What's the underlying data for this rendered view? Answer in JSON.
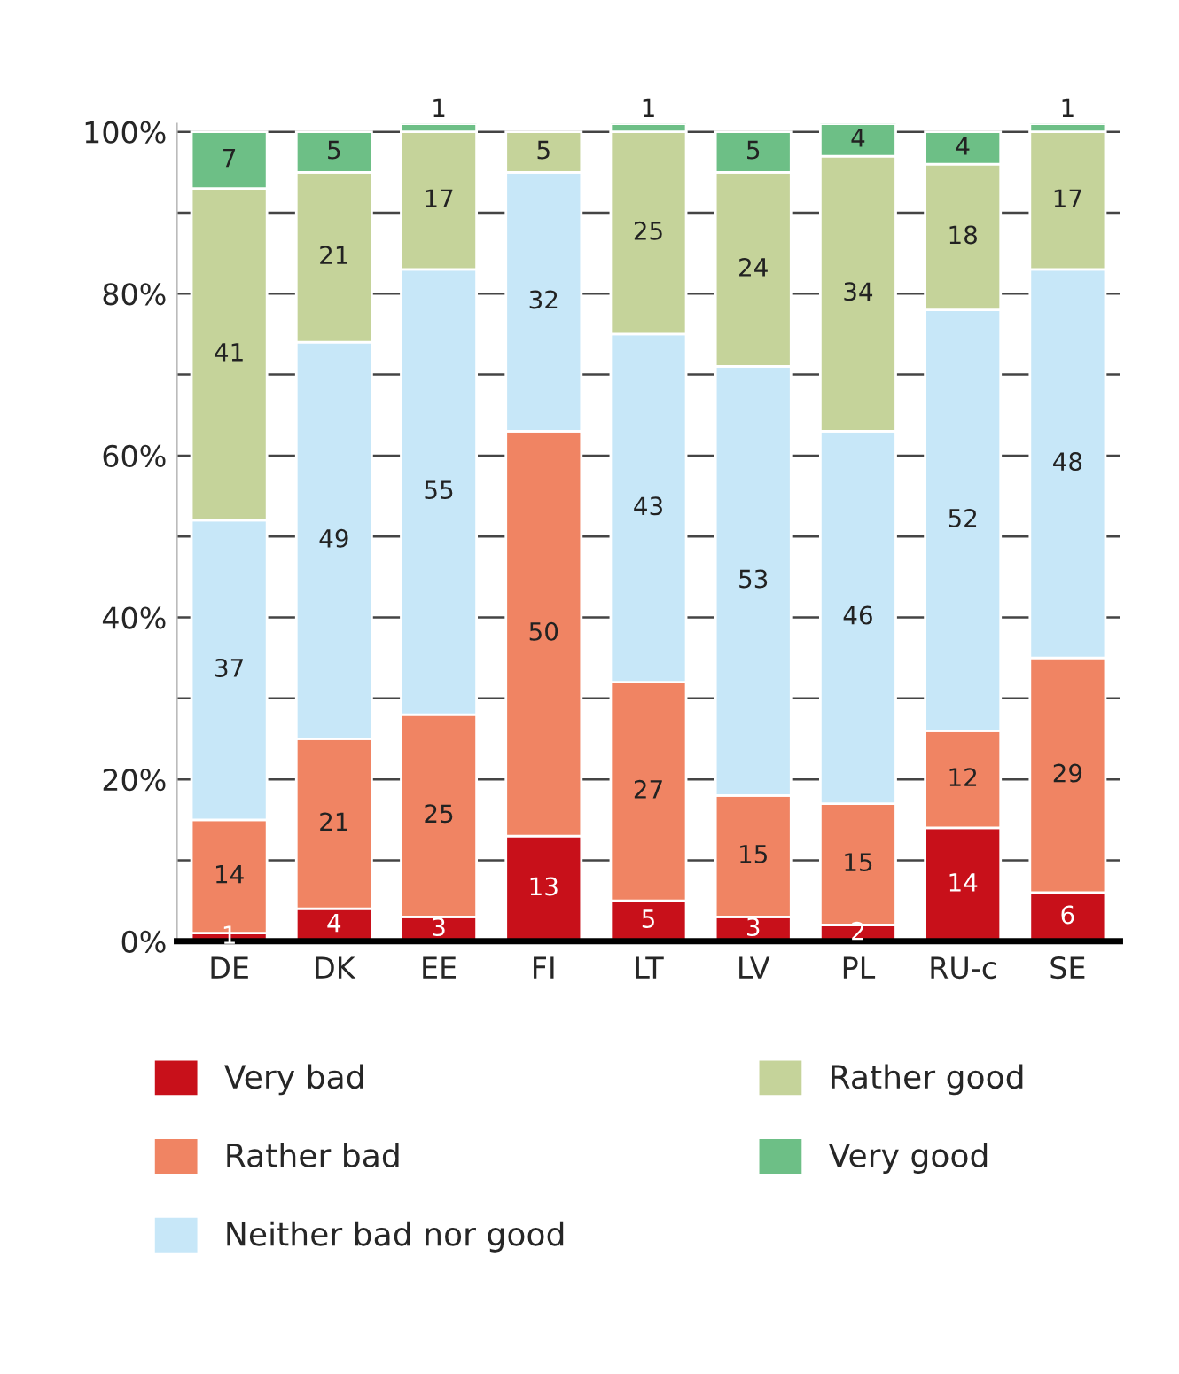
{
  "chart_data": {
    "type": "bar",
    "stacked": true,
    "categories": [
      "DE",
      "DK",
      "EE",
      "FI",
      "LT",
      "LV",
      "PL",
      "RU-c",
      "SE"
    ],
    "series": [
      {
        "name": "Very bad",
        "color": "#c8101a",
        "values": [
          1,
          4,
          3,
          13,
          5,
          3,
          2,
          14,
          6
        ]
      },
      {
        "name": "Rather bad",
        "color": "#f08463",
        "values": [
          14,
          21,
          25,
          50,
          27,
          15,
          15,
          12,
          29
        ]
      },
      {
        "name": "Neither bad nor good",
        "color": "#c7e7f8",
        "values": [
          37,
          49,
          55,
          32,
          43,
          53,
          46,
          52,
          48
        ]
      },
      {
        "name": "Rather good",
        "color": "#c5d39a",
        "values": [
          41,
          21,
          17,
          5,
          25,
          24,
          34,
          18,
          17
        ]
      },
      {
        "name": "Very good",
        "color": "#6dbf86",
        "values": [
          7,
          5,
          1,
          null,
          1,
          5,
          4,
          4,
          1
        ]
      }
    ],
    "ylim": [
      0,
      101
    ],
    "yticks": [
      {
        "value": 0,
        "label": "0%"
      },
      {
        "value": 10,
        "label": null
      },
      {
        "value": 20,
        "label": "20%"
      },
      {
        "value": 30,
        "label": null
      },
      {
        "value": 40,
        "label": "40%"
      },
      {
        "value": 50,
        "label": null
      },
      {
        "value": 60,
        "label": "60%"
      },
      {
        "value": 70,
        "label": null
      },
      {
        "value": 80,
        "label": "80%"
      },
      {
        "value": 90,
        "label": null
      },
      {
        "value": 100,
        "label": "100%"
      }
    ],
    "grid": "y",
    "legend": "bottom",
    "data_labels": true
  }
}
